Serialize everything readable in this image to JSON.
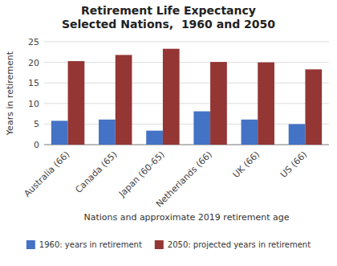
{
  "chart_data": {
    "type": "bar",
    "title": "Retirement Life Expectancy\nSelected Nations,  1960 and 2050",
    "x_label": "Nations and approximate 2019 retirement age",
    "y_label": "Years in retirement",
    "categories": [
      "Australia (66)",
      "Canada (65)",
      "Japan (60-65)",
      "Netherlands (66)",
      "UK (66)",
      "US (66)"
    ],
    "series": [
      {
        "name": "1960: years in retirement",
        "color": "#4472C4",
        "values": [
          5.8,
          6.1,
          3.4,
          8.1,
          6.1,
          5.0
        ]
      },
      {
        "name": "2050: projected years in retirement",
        "color": "#943634",
        "values": [
          20.3,
          21.8,
          23.3,
          20.1,
          20.0,
          18.3
        ]
      }
    ],
    "ylim": [
      0,
      25
    ],
    "yticks": [
      0,
      5,
      10,
      15,
      20,
      25
    ],
    "grid": true,
    "legend": "bottom"
  }
}
